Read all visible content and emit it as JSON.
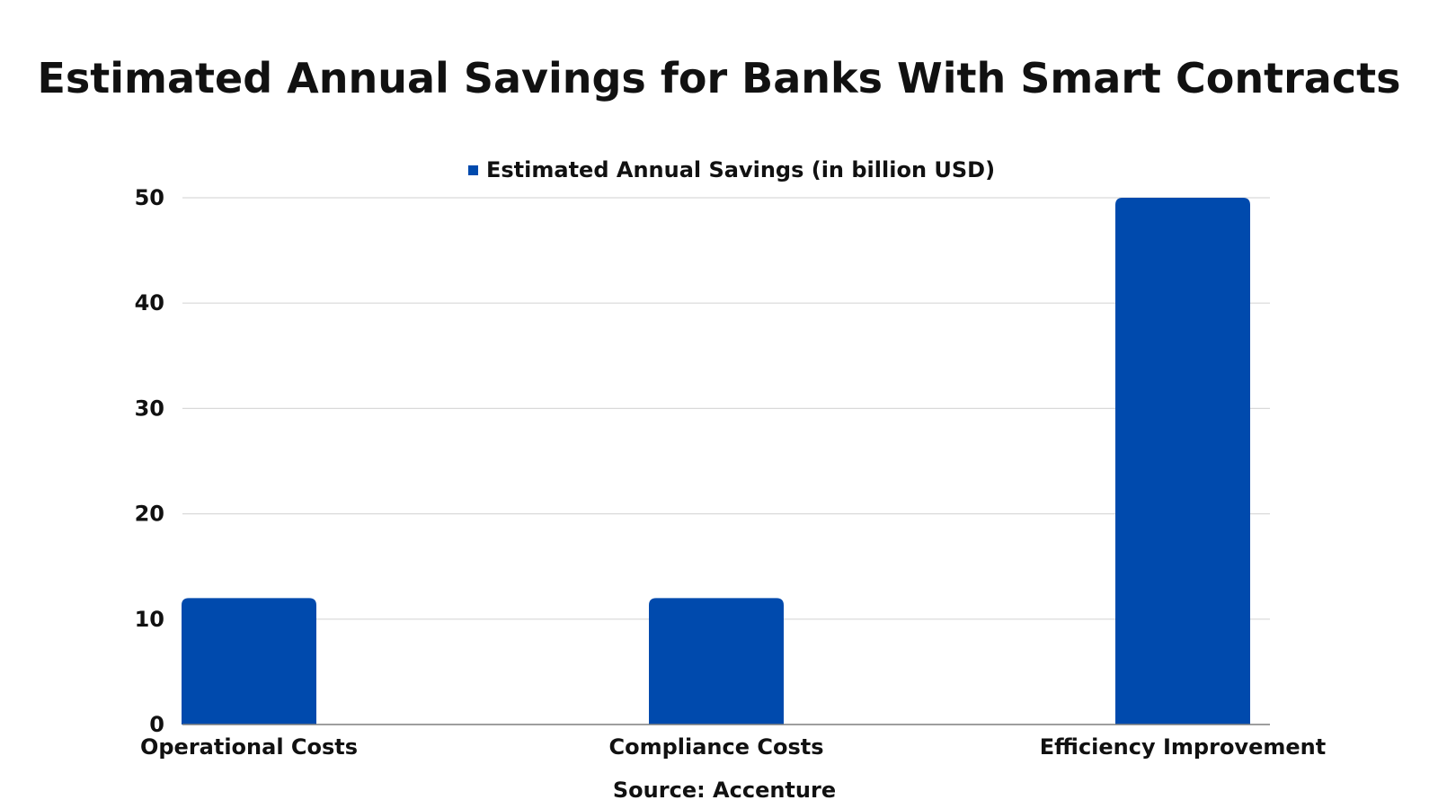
{
  "chart_data": {
    "type": "bar",
    "title": "Estimated Annual Savings for Banks With Smart Contracts",
    "categories": [
      "Operational Costs",
      "Compliance Costs",
      "Efficiency Improvement"
    ],
    "series": [
      {
        "name": "Estimated Annual Savings (in billion USD)",
        "values": [
          12,
          12,
          50
        ],
        "color": "#004aad"
      }
    ],
    "yticks": [
      "0",
      "10",
      "20",
      "30",
      "40",
      "50"
    ],
    "ylim": [
      0,
      50
    ],
    "grid": true,
    "legend_position": "top-center",
    "source": "Source: Accenture"
  }
}
